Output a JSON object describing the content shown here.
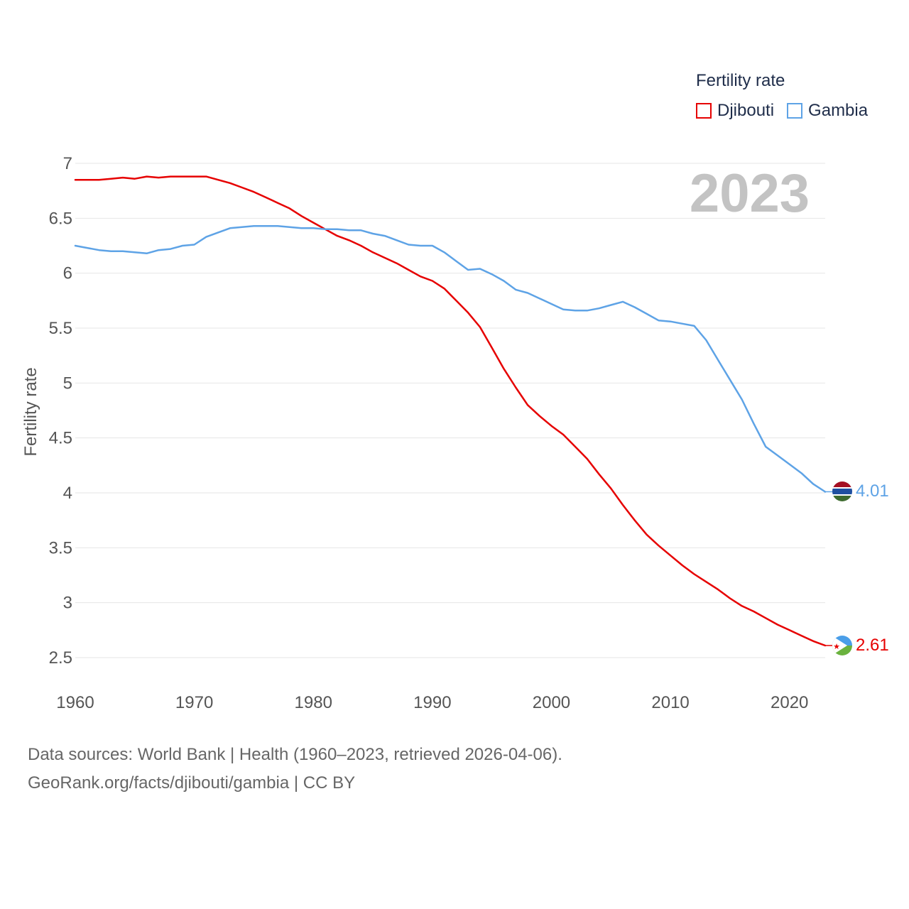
{
  "colors": {
    "djibouti": "#e60000",
    "gambia": "#5ea3e6",
    "grid": "#e6e6e6",
    "axis_text": "#555555",
    "year_watermark": "#c3c3c3"
  },
  "legend": {
    "title": "Fertility rate",
    "items": [
      {
        "label": "Djibouti",
        "color": "#e60000"
      },
      {
        "label": "Gambia",
        "color": "#5ea3e6"
      }
    ]
  },
  "year_watermark": "2023",
  "end_labels": {
    "djibouti": "2.61",
    "gambia": "4.01"
  },
  "flag_icons": {
    "djibouti": "djibouti-flag-icon",
    "gambia": "gambia-flag-icon"
  },
  "source": {
    "line1": "Data sources: World Bank | Health (1960–2023, retrieved 2026-04-06).",
    "line2": "GeoRank.org/facts/djibouti/gambia | CC BY"
  },
  "chart_data": {
    "type": "line",
    "title": "Fertility rate",
    "xlabel": "",
    "ylabel": "Fertility rate",
    "xlim": [
      1960,
      2023
    ],
    "ylim": [
      2.5,
      7
    ],
    "yticks": [
      2.5,
      3,
      3.5,
      4,
      4.5,
      5,
      5.5,
      6,
      6.5,
      7
    ],
    "ytick_labels": [
      "2.5",
      "3",
      "3.5",
      "4",
      "4.5",
      "5",
      "5.5",
      "6",
      "6.5",
      "7"
    ],
    "xticks": [
      1960,
      1970,
      1980,
      1990,
      2000,
      2010,
      2020
    ],
    "xtick_labels": [
      "1960",
      "1970",
      "1980",
      "1990",
      "2000",
      "2010",
      "2020"
    ],
    "legend_position": "top-right",
    "grid": true,
    "x": [
      1960,
      1961,
      1962,
      1963,
      1964,
      1965,
      1966,
      1967,
      1968,
      1969,
      1970,
      1971,
      1972,
      1973,
      1974,
      1975,
      1976,
      1977,
      1978,
      1979,
      1980,
      1981,
      1982,
      1983,
      1984,
      1985,
      1986,
      1987,
      1988,
      1989,
      1990,
      1991,
      1992,
      1993,
      1994,
      1995,
      1996,
      1997,
      1998,
      1999,
      2000,
      2001,
      2002,
      2003,
      2004,
      2005,
      2006,
      2007,
      2008,
      2009,
      2010,
      2011,
      2012,
      2013,
      2014,
      2015,
      2016,
      2017,
      2018,
      2019,
      2020,
      2021,
      2022,
      2023
    ],
    "series": [
      {
        "name": "Djibouti",
        "key": "djibouti",
        "values": [
          6.85,
          6.85,
          6.85,
          6.86,
          6.87,
          6.86,
          6.88,
          6.87,
          6.88,
          6.88,
          6.88,
          6.88,
          6.85,
          6.82,
          6.78,
          6.74,
          6.69,
          6.64,
          6.59,
          6.52,
          6.46,
          6.4,
          6.34,
          6.3,
          6.25,
          6.19,
          6.14,
          6.09,
          6.03,
          5.97,
          5.93,
          5.86,
          5.75,
          5.64,
          5.51,
          5.32,
          5.13,
          4.96,
          4.8,
          4.7,
          4.61,
          4.53,
          4.42,
          4.31,
          4.17,
          4.04,
          3.89,
          3.75,
          3.62,
          3.52,
          3.43,
          3.34,
          3.26,
          3.19,
          3.12,
          3.04,
          2.97,
          2.92,
          2.86,
          2.8,
          2.75,
          2.7,
          2.65,
          2.61
        ]
      },
      {
        "name": "Gambia",
        "key": "gambia",
        "values": [
          6.25,
          6.23,
          6.21,
          6.2,
          6.2,
          6.19,
          6.18,
          6.21,
          6.22,
          6.25,
          6.26,
          6.33,
          6.37,
          6.41,
          6.42,
          6.43,
          6.43,
          6.43,
          6.42,
          6.41,
          6.41,
          6.4,
          6.4,
          6.39,
          6.39,
          6.36,
          6.34,
          6.3,
          6.26,
          6.25,
          6.25,
          6.19,
          6.11,
          6.03,
          6.04,
          5.99,
          5.93,
          5.85,
          5.82,
          5.77,
          5.72,
          5.67,
          5.66,
          5.66,
          5.68,
          5.71,
          5.74,
          5.69,
          5.63,
          5.57,
          5.56,
          5.54,
          5.52,
          5.39,
          5.21,
          5.03,
          4.85,
          4.63,
          4.42,
          4.34,
          4.26,
          4.18,
          4.08,
          4.01
        ]
      }
    ]
  }
}
